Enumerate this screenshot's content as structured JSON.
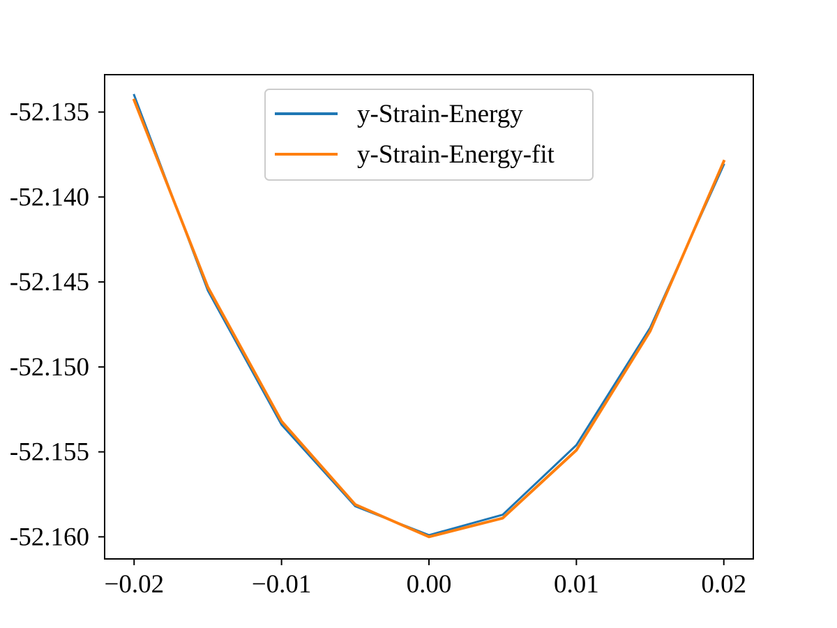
{
  "chart_data": {
    "type": "line",
    "title": "",
    "xlabel": "",
    "ylabel": "",
    "xlim": [
      -0.022,
      0.022
    ],
    "ylim": [
      -52.1613,
      -52.1328
    ],
    "x_ticks": [
      -0.02,
      -0.01,
      0.0,
      0.01,
      0.02
    ],
    "x_tick_labels": [
      "−0.02",
      "−0.01",
      "0.00",
      "0.01",
      "0.02"
    ],
    "y_ticks": [
      -52.135,
      -52.14,
      -52.145,
      -52.15,
      -52.155,
      -52.16
    ],
    "y_tick_labels": [
      "-52.135",
      "-52.140",
      "-52.145",
      "-52.150",
      "-52.155",
      "-52.160"
    ],
    "grid": false,
    "legend_position": "upper center",
    "x": [
      -0.02,
      -0.015,
      -0.01,
      -0.005,
      0.0,
      0.005,
      0.01,
      0.015,
      0.02
    ],
    "series": [
      {
        "name": "y-Strain-Energy",
        "color": "#1f77b4",
        "values": [
          -52.134,
          -52.1455,
          -52.1534,
          -52.1582,
          -52.1599,
          -52.1587,
          -52.1546,
          -52.1477,
          -52.1381
        ]
      },
      {
        "name": "y-Strain-Energy-fit",
        "color": "#ff7f0e",
        "values": [
          -52.1343,
          -52.1453,
          -52.1532,
          -52.1581,
          -52.16,
          -52.1589,
          -52.1549,
          -52.1479,
          -52.1379
        ]
      }
    ]
  }
}
